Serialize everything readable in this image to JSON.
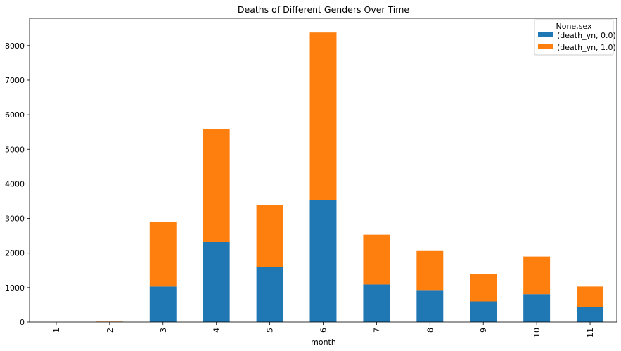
{
  "chart_data": {
    "type": "bar",
    "stacked": true,
    "title": "Deaths of Different Genders Over Time",
    "xlabel": "month",
    "ylabel": "",
    "categories": [
      "1",
      "2",
      "3",
      "4",
      "5",
      "6",
      "7",
      "8",
      "9",
      "10",
      "11"
    ],
    "series": [
      {
        "name": "(death_yn, 0.0)",
        "color": "#1f77b4",
        "values": [
          0,
          5,
          1030,
          2320,
          1600,
          3530,
          1090,
          930,
          600,
          810,
          440
        ]
      },
      {
        "name": "(death_yn, 1.0)",
        "color": "#ff7f0e",
        "values": [
          0,
          10,
          1880,
          3260,
          1780,
          4850,
          1440,
          1130,
          800,
          1090,
          590
        ]
      }
    ],
    "ylim": [
      0,
      8790
    ],
    "yticks": [
      0,
      1000,
      2000,
      3000,
      4000,
      5000,
      6000,
      7000,
      8000
    ],
    "legend": {
      "title": "None,sex",
      "placement": "top-right"
    },
    "grid": false
  }
}
